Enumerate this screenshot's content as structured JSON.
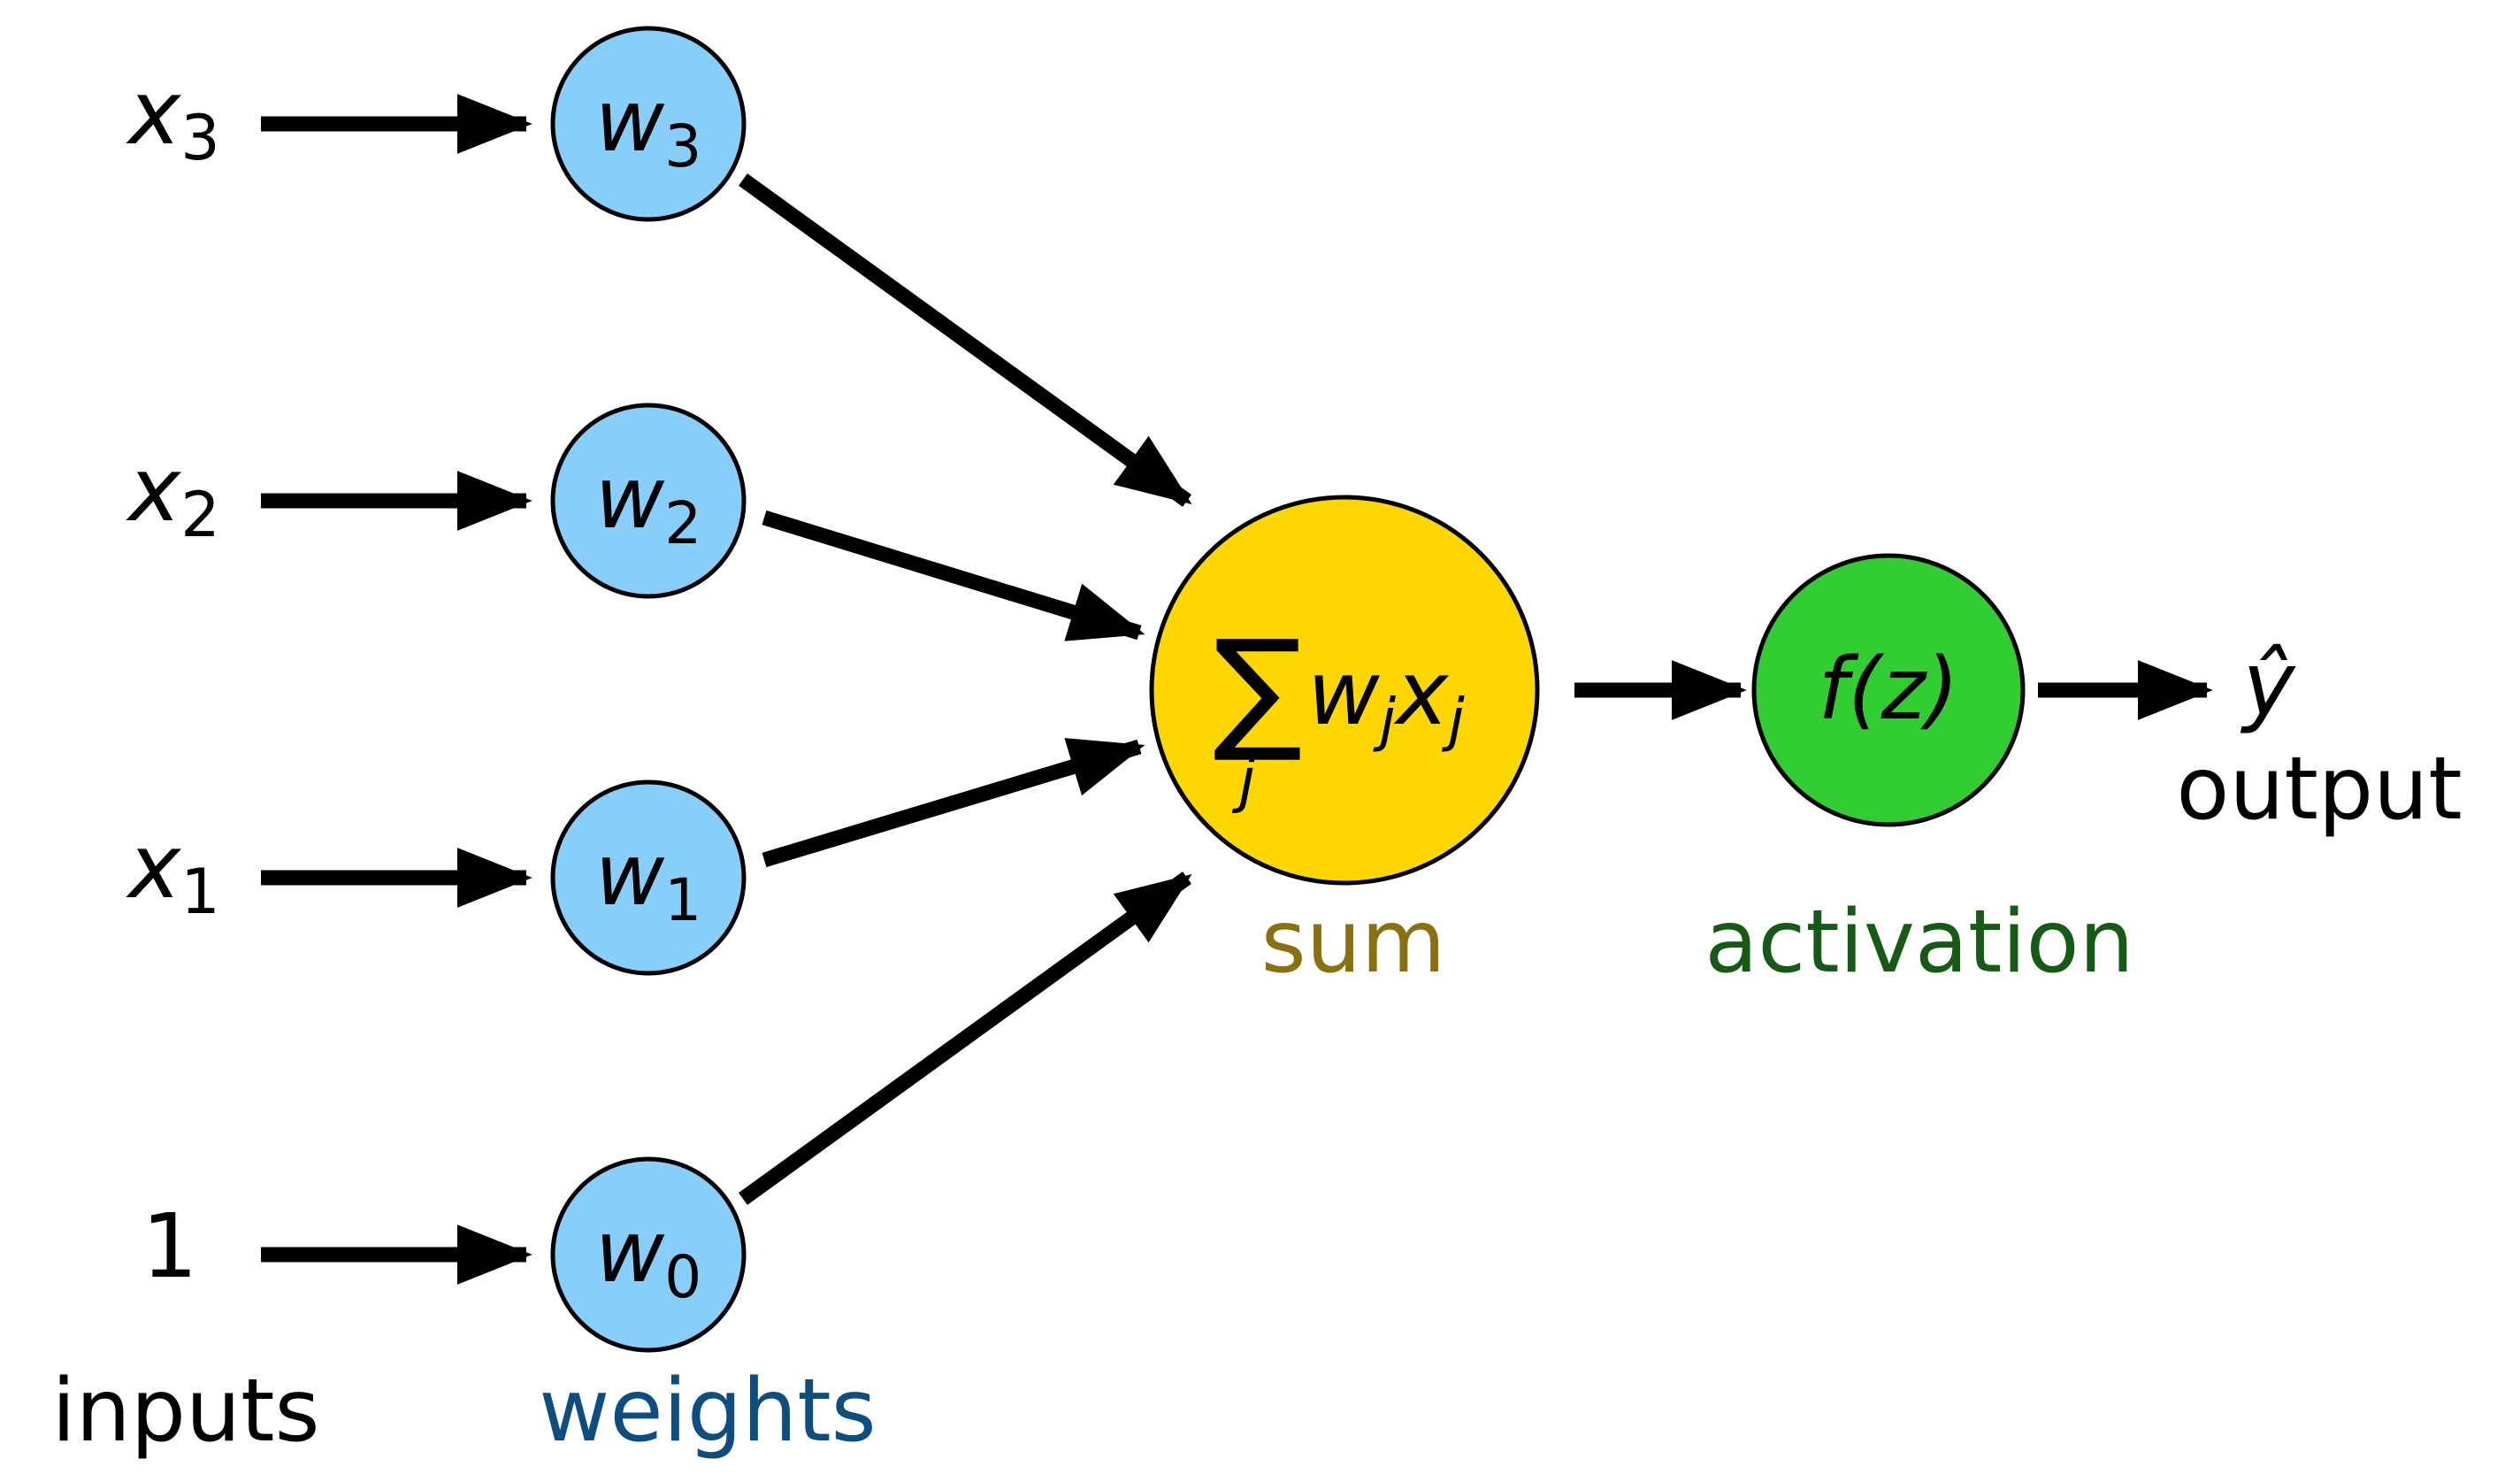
{
  "inputs": [
    {
      "symbol": "x",
      "sub": "3"
    },
    {
      "symbol": "x",
      "sub": "2"
    },
    {
      "symbol": "x",
      "sub": "1"
    },
    {
      "symbol": "1",
      "sub": ""
    }
  ],
  "weights": [
    {
      "symbol": "w",
      "sub": "3"
    },
    {
      "symbol": "w",
      "sub": "2"
    },
    {
      "symbol": "w",
      "sub": "1"
    },
    {
      "symbol": "w",
      "sub": "0"
    }
  ],
  "sum_node": {
    "sigma": "∑",
    "index": "j",
    "term_w": "w",
    "term_x": "x",
    "term_sub": "j"
  },
  "activation_node": {
    "formula": "f(z)"
  },
  "output": {
    "symbol": "ŷ"
  },
  "labels": {
    "inputs": "inputs",
    "weights": "weights",
    "sum": "sum",
    "activation": "activation",
    "output": "output"
  },
  "colors": {
    "weight_fill": "#87cefa",
    "sum_fill": "#ffd700",
    "activation_fill": "#32cd32",
    "weights_label": "#0e4d7f",
    "sum_label": "#8b7010",
    "activation_label": "#155a15",
    "ink": "#000000"
  }
}
